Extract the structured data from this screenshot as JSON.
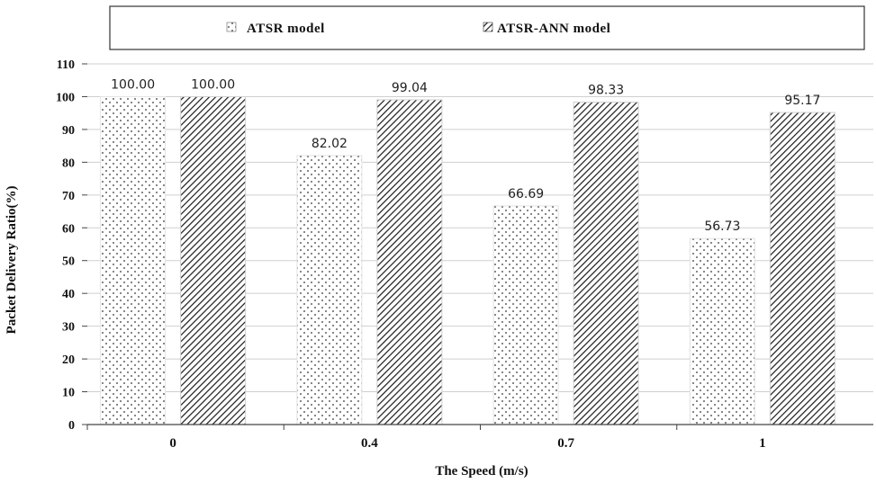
{
  "chart_data": {
    "type": "bar",
    "xlabel": "The Speed (m/s)",
    "ylabel": "Packet Delivery Ratio(%)",
    "categories": [
      "0",
      "0.4",
      "0.7",
      "1"
    ],
    "series": [
      {
        "name": "ATSR model",
        "values": [
          100.0,
          82.02,
          66.69,
          56.73
        ],
        "labels": [
          "100.00",
          "82.02",
          "66.69",
          "56.73"
        ],
        "pattern": "dots",
        "color": "#ffffff"
      },
      {
        "name": "ATSR-ANN model",
        "values": [
          100.0,
          99.04,
          98.33,
          95.17
        ],
        "labels": [
          "100.00",
          "99.04",
          "98.33",
          "95.17"
        ],
        "pattern": "hatch",
        "color": "#ffffff"
      }
    ],
    "ylim": [
      0,
      110
    ],
    "yticks": [
      0,
      10,
      20,
      30,
      40,
      50,
      60,
      70,
      80,
      90,
      100,
      110
    ],
    "grid": true,
    "legend": "top"
  }
}
